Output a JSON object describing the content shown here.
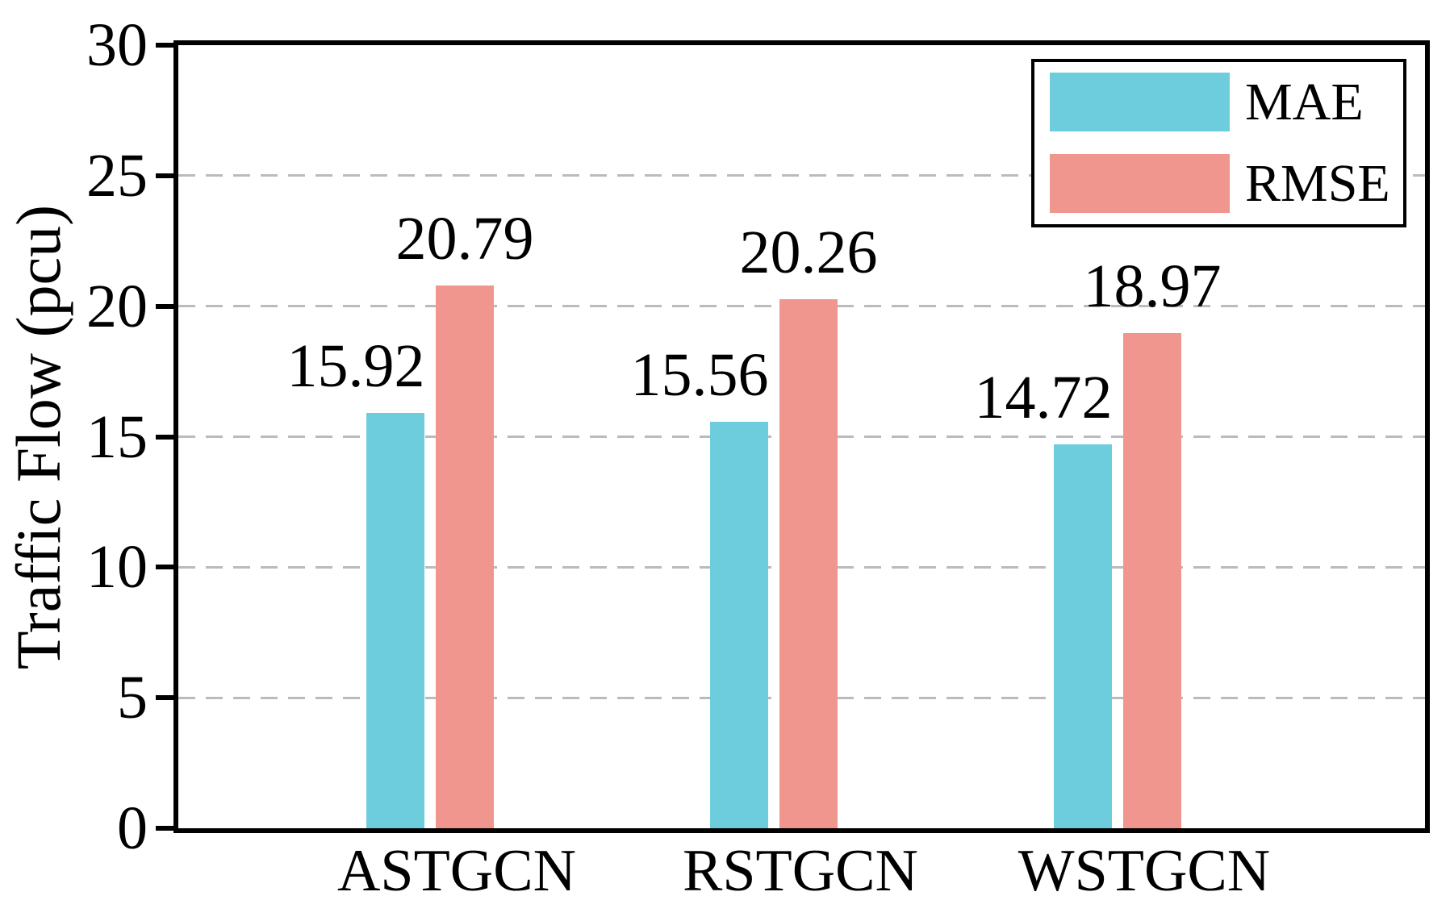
{
  "figure": {
    "background": "#ffffff",
    "text_color": "#000000",
    "spine_color": "#000000"
  },
  "chart_data": {
    "type": "bar",
    "title": "",
    "xlabel": "",
    "ylabel": "Traffic Flow (pcu)",
    "categories": [
      "ASTGCN",
      "RSTGCN",
      "WSTGCN"
    ],
    "series": [
      {
        "name": "MAE",
        "color": "#6ECDDD",
        "values": [
          15.92,
          15.56,
          14.72
        ]
      },
      {
        "name": "RMSE",
        "color": "#F0968F",
        "values": [
          20.79,
          20.26,
          18.97
        ]
      }
    ],
    "value_labels": {
      "MAE": [
        "15.92",
        "15.56",
        "14.72"
      ],
      "RMSE": [
        "20.79",
        "20.26",
        "18.97"
      ]
    },
    "ylim": [
      0,
      30
    ],
    "yticks": [
      "0",
      "5",
      "10",
      "15",
      "20",
      "25",
      "30"
    ],
    "grid": {
      "axis": "y",
      "style": "dashed",
      "color": "#bbbbbb",
      "at": [
        5,
        10,
        15,
        20,
        25
      ]
    },
    "legend": {
      "position": "upper-right",
      "border": "#000000",
      "entries": [
        "MAE",
        "RMSE"
      ]
    }
  }
}
